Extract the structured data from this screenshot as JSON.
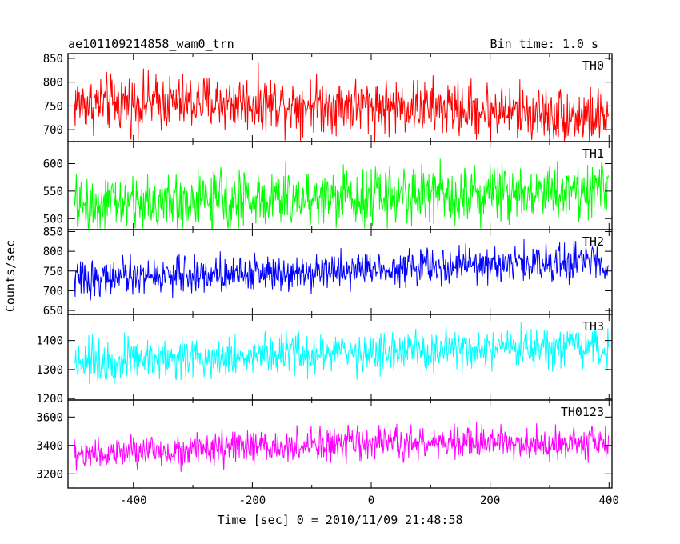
{
  "header": {
    "title": "ae101109214858_wam0_trn",
    "bin_time": "Bin time: 1.0 s"
  },
  "chart_data": {
    "type": "line",
    "title": "ae101109214858_wam0_trn",
    "xlabel": "Time [sec] 0 = 2010/11/09 21:48:58",
    "ylabel": "Counts/sec",
    "xlim": [
      -510,
      405
    ],
    "x_ticks": [
      -400,
      -200,
      0,
      200,
      400
    ],
    "x_step": 1.0,
    "x_range": [
      -500,
      399
    ],
    "grid": false,
    "panels": [
      {
        "name": "TH0",
        "color": "#ff0000",
        "ylim": [
          675,
          860
        ],
        "y_ticks": [
          700,
          750,
          800,
          850
        ],
        "start": 755,
        "end": 725,
        "middle": 765,
        "noise_amplitude": 45,
        "min": 675,
        "max": 860
      },
      {
        "name": "TH1",
        "color": "#00ff00",
        "ylim": [
          480,
          640
        ],
        "y_ticks": [
          500,
          550,
          600
        ],
        "start": 525,
        "end": 555,
        "middle": 540,
        "noise_amplitude": 40,
        "min": 482,
        "max": 635
      },
      {
        "name": "TH2",
        "color": "#0000ff",
        "ylim": [
          640,
          855
        ],
        "y_ticks": [
          650,
          700,
          750,
          800,
          850
        ],
        "start": 730,
        "end": 775,
        "middle": 755,
        "noise_amplitude": 35,
        "min": 650,
        "max": 850
      },
      {
        "name": "TH3",
        "color": "#00ffff",
        "ylim": [
          1195,
          1490
        ],
        "y_ticks": [
          1200,
          1300,
          1400
        ],
        "start": 1330,
        "end": 1370,
        "middle": 1360,
        "noise_amplitude": 55,
        "min": 1210,
        "max": 1485
      },
      {
        "name": "TH0123",
        "color": "#ff00ff",
        "ylim": [
          3100,
          3720
        ],
        "y_ticks": [
          3200,
          3400,
          3600
        ],
        "start": 3330,
        "end": 3420,
        "middle": 3430,
        "noise_amplitude": 90,
        "min": 3130,
        "max": 3680
      }
    ]
  }
}
